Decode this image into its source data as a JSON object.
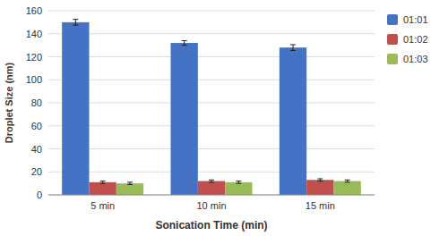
{
  "chart_data": {
    "type": "bar",
    "categories": [
      "5 min",
      "10 min",
      "15 min"
    ],
    "series": [
      {
        "name": "01:01",
        "color": "#4472C4",
        "values": [
          150,
          132,
          128
        ],
        "errors": [
          2.5,
          2.0,
          2.5
        ]
      },
      {
        "name": "01:02",
        "color": "#C0504D",
        "values": [
          11,
          12,
          13
        ],
        "errors": [
          1.0,
          1.0,
          1.0
        ]
      },
      {
        "name": "01:03",
        "color": "#9BBB59",
        "values": [
          10,
          11,
          12
        ],
        "errors": [
          1.0,
          1.0,
          1.0
        ]
      }
    ],
    "xlabel": "Sonication Time (min)",
    "ylabel": "Droplet Size (nm)",
    "ylim": [
      0,
      160
    ],
    "yticks": [
      0,
      20,
      40,
      60,
      80,
      100,
      120,
      140,
      160
    ],
    "grid": true,
    "legend": "right"
  }
}
